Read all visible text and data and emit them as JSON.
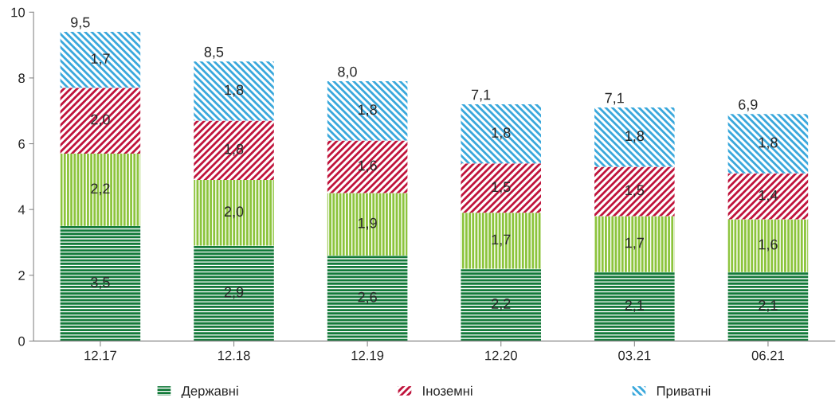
{
  "chart_data": {
    "type": "bar",
    "stacked": true,
    "categories": [
      "12.17",
      "12.18",
      "12.19",
      "12.20",
      "03.21",
      "06.21"
    ],
    "series": [
      {
        "name": "Державні",
        "color": "#137a3a",
        "values": [
          3.5,
          2.9,
          2.6,
          2.2,
          2.1,
          2.1
        ],
        "value_labels": [
          "3,5",
          "2,9",
          "2,6",
          "2,2",
          "2,1",
          "2,1"
        ]
      },
      {
        "color": "#8cc43c",
        "values": [
          2.2,
          2.0,
          1.9,
          1.7,
          1.7,
          1.6
        ],
        "value_labels": [
          "2,2",
          "2,0",
          "1,9",
          "1,7",
          "1,7",
          "1,6"
        ]
      },
      {
        "name": "Іноземні",
        "color": "#c0143c",
        "values": [
          2.0,
          1.8,
          1.6,
          1.5,
          1.5,
          1.4
        ],
        "value_labels": [
          "2,0",
          "1,8",
          "1,6",
          "1,5",
          "1,5",
          "1,4"
        ]
      },
      {
        "name": "Приватні",
        "color": "#3aa8dc",
        "values": [
          1.7,
          1.8,
          1.8,
          1.8,
          1.8,
          1.8
        ],
        "value_labels": [
          "1,7",
          "1,8",
          "1,8",
          "1,8",
          "1,8",
          "1,8"
        ]
      }
    ],
    "totals": [
      "9,5",
      "8,5",
      "8,0",
      "7,1",
      "7,1",
      "6,9"
    ],
    "ylim": [
      0,
      10
    ],
    "yticks": [
      0,
      2,
      4,
      6,
      8,
      10
    ],
    "grid": false,
    "legend": "bottom"
  }
}
